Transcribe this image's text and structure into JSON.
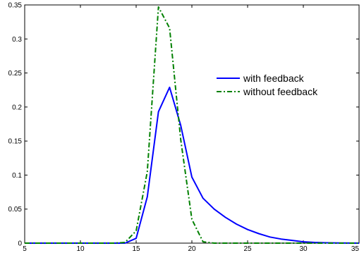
{
  "chart_data": {
    "type": "line",
    "title": "",
    "xlabel": "",
    "ylabel": "",
    "xlim": [
      5,
      35
    ],
    "ylim": [
      0,
      0.35
    ],
    "x_ticks": [
      5,
      10,
      15,
      20,
      25,
      30,
      35
    ],
    "x_tick_labels": [
      "5",
      "10",
      "15",
      "20",
      "25",
      "30",
      "35"
    ],
    "y_ticks": [
      0,
      0.05,
      0.1,
      0.15,
      0.2,
      0.25,
      0.3,
      0.35
    ],
    "y_tick_labels": [
      "0",
      "0.05",
      "0.1",
      "0.15",
      "0.2",
      "0.25",
      "0.3",
      "0.35"
    ],
    "grid": false,
    "legend_position": "upper-right",
    "series": [
      {
        "name": "with feedback",
        "color": "#0000ff",
        "style": "solid",
        "x": [
          5,
          6,
          7,
          8,
          9,
          10,
          11,
          12,
          13,
          14,
          15,
          16,
          17,
          18,
          19,
          20,
          21,
          22,
          23,
          24,
          25,
          26,
          27,
          28,
          29,
          30,
          31,
          32,
          33,
          34,
          35
        ],
        "y": [
          0,
          0,
          0,
          0,
          0,
          0,
          0,
          0,
          0,
          0,
          0.007,
          0.068,
          0.193,
          0.229,
          0.173,
          0.097,
          0.066,
          0.05,
          0.038,
          0.028,
          0.02,
          0.014,
          0.009,
          0.006,
          0.004,
          0.002,
          0.001,
          0.0005,
          0.0002,
          0.0001,
          0
        ]
      },
      {
        "name": "without feedback",
        "color": "#008000",
        "style": "dashdot",
        "x": [
          5,
          6,
          7,
          8,
          9,
          10,
          11,
          12,
          13,
          14,
          15,
          16,
          17,
          18,
          19,
          20,
          21,
          22,
          23,
          24,
          25,
          26,
          27,
          28,
          29,
          30,
          31,
          32,
          33,
          34,
          35
        ],
        "y": [
          0,
          0,
          0,
          0,
          0,
          0,
          0,
          0,
          0,
          0.001,
          0.018,
          0.105,
          0.347,
          0.316,
          0.152,
          0.035,
          0.002,
          0,
          0,
          0,
          0,
          0,
          0,
          0,
          0,
          0,
          0,
          0,
          0,
          0,
          0
        ]
      }
    ]
  }
}
